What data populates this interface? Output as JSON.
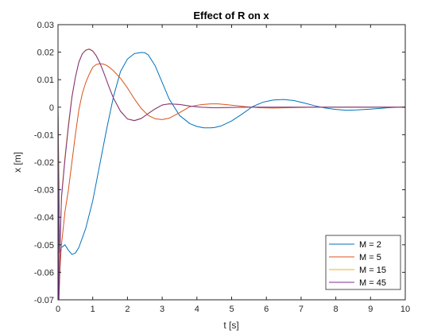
{
  "chart_data": {
    "type": "line",
    "title": "Effect of R on x",
    "xlabel": "t [s]",
    "ylabel": "x [m]",
    "xlim": [
      0,
      10
    ],
    "ylim": [
      -0.07,
      0.03
    ],
    "xticks": [
      0,
      1,
      2,
      3,
      4,
      5,
      6,
      7,
      8,
      9,
      10
    ],
    "xtick_labels": [
      "0",
      "1",
      "2",
      "3",
      "4",
      "5",
      "6",
      "7",
      "8",
      "9",
      "10"
    ],
    "yticks": [
      0.03,
      0.02,
      0.01,
      0,
      -0.01,
      -0.02,
      -0.03,
      -0.04,
      -0.05,
      -0.06,
      -0.07
    ],
    "ytick_labels": [
      "0.03",
      "0.02",
      "0.01",
      "0",
      "-0.01",
      "-0.02",
      "-0.03",
      "-0.04",
      "-0.05",
      "-0.06",
      "-0.07"
    ],
    "grid": false,
    "legend_position": "bottom-right",
    "series": [
      {
        "name": "M = 2",
        "color": "#0072BD",
        "x": [
          0,
          0.05,
          0.1,
          0.2,
          0.3,
          0.4,
          0.5,
          0.6,
          0.8,
          1.0,
          1.2,
          1.4,
          1.6,
          1.8,
          2.0,
          2.2,
          2.4,
          2.5,
          2.6,
          2.8,
          3.0,
          3.2,
          3.5,
          3.8,
          4.0,
          4.2,
          4.4,
          4.5,
          4.7,
          5.0,
          5.3,
          5.6,
          5.9,
          6.2,
          6.5,
          6.8,
          7.1,
          7.4,
          7.7,
          8.0,
          8.3,
          8.6,
          9.0,
          9.5,
          10.0
        ],
        "y": [
          0,
          -0.053,
          -0.051,
          -0.05,
          -0.052,
          -0.0535,
          -0.053,
          -0.051,
          -0.044,
          -0.034,
          -0.021,
          -0.008,
          0.004,
          0.013,
          0.0175,
          0.0195,
          0.0199,
          0.0198,
          0.019,
          0.015,
          0.009,
          0.003,
          -0.003,
          -0.006,
          -0.007,
          -0.0075,
          -0.0075,
          -0.0074,
          -0.0068,
          -0.005,
          -0.0025,
          0.0002,
          0.0018,
          0.0026,
          0.0028,
          0.0024,
          0.0015,
          0.0005,
          -0.0003,
          -0.0008,
          -0.0011,
          -0.001,
          -0.0007,
          -0.0002,
          0.0001
        ]
      },
      {
        "name": "M = 5",
        "color": "#D95319",
        "x": [
          0,
          0.03,
          0.06,
          0.1,
          0.2,
          0.3,
          0.4,
          0.5,
          0.6,
          0.7,
          0.8,
          0.9,
          1.0,
          1.1,
          1.2,
          1.3,
          1.4,
          1.5,
          1.6,
          1.8,
          2.0,
          2.2,
          2.4,
          2.6,
          2.8,
          3.0,
          3.2,
          3.5,
          3.8,
          4.1,
          4.4,
          4.6,
          4.8,
          5.1,
          5.4,
          5.8,
          6.2,
          6.6,
          7.0,
          7.5,
          8.0,
          9.0,
          10.0
        ],
        "y": [
          0,
          -0.068,
          -0.058,
          -0.05,
          -0.038,
          -0.03,
          -0.02,
          -0.01,
          -0.001,
          0.005,
          0.009,
          0.012,
          0.0145,
          0.0155,
          0.0158,
          0.0157,
          0.0152,
          0.0143,
          0.0132,
          0.0105,
          0.007,
          0.003,
          -0.0005,
          -0.003,
          -0.0042,
          -0.0045,
          -0.004,
          -0.002,
          0.0002,
          0.0009,
          0.0012,
          0.0012,
          0.001,
          0.0006,
          0.0002,
          -0.0002,
          -0.0003,
          -0.0002,
          -0.0001,
          0,
          0,
          0,
          0
        ]
      },
      {
        "name": "M = 15",
        "color": "#EDB120",
        "x": [
          0,
          0.02,
          0.04,
          0.07,
          0.1,
          0.2,
          0.3,
          0.4,
          0.5,
          0.6,
          0.7,
          0.8,
          0.9,
          1.0,
          1.1,
          1.2,
          1.3,
          1.4,
          1.5,
          1.6,
          1.8,
          2.0,
          2.2,
          2.4,
          2.6,
          2.8,
          3.0,
          3.2,
          3.5,
          3.8,
          4.1,
          4.5,
          5.0,
          5.5,
          6.0,
          7.0,
          8.0,
          9.0,
          10.0
        ],
        "y": [
          0,
          -0.07,
          -0.062,
          -0.045,
          -0.032,
          -0.018,
          -0.006,
          0.004,
          0.011,
          0.0165,
          0.0195,
          0.0208,
          0.0212,
          0.0205,
          0.0188,
          0.0163,
          0.0132,
          0.0098,
          0.0064,
          0.0033,
          -0.0014,
          -0.0042,
          -0.0048,
          -0.004,
          -0.0022,
          -0.0005,
          0.0008,
          0.0012,
          0.001,
          0.0004,
          0,
          -0.0002,
          -0.0001,
          0,
          0,
          0,
          0,
          0,
          0
        ]
      },
      {
        "name": "M = 45",
        "color": "#7E2F8E",
        "x": [
          0,
          0.02,
          0.04,
          0.07,
          0.1,
          0.2,
          0.3,
          0.4,
          0.5,
          0.6,
          0.7,
          0.8,
          0.9,
          1.0,
          1.1,
          1.2,
          1.3,
          1.4,
          1.5,
          1.6,
          1.8,
          2.0,
          2.2,
          2.4,
          2.6,
          2.8,
          3.0,
          3.2,
          3.5,
          3.8,
          4.1,
          4.5,
          5.0,
          5.5,
          6.0,
          7.0,
          8.0,
          9.0,
          10.0
        ],
        "y": [
          0,
          -0.075,
          -0.063,
          -0.046,
          -0.033,
          -0.019,
          -0.007,
          0.0035,
          0.0108,
          0.0163,
          0.0194,
          0.0207,
          0.0211,
          0.0204,
          0.0187,
          0.0162,
          0.0131,
          0.0097,
          0.0063,
          0.0032,
          -0.0015,
          -0.0043,
          -0.0049,
          -0.0041,
          -0.0023,
          -0.0006,
          0.0008,
          0.0012,
          0.001,
          0.0004,
          0,
          -0.0002,
          -0.0001,
          0,
          0,
          0,
          0,
          0,
          0
        ]
      }
    ]
  }
}
